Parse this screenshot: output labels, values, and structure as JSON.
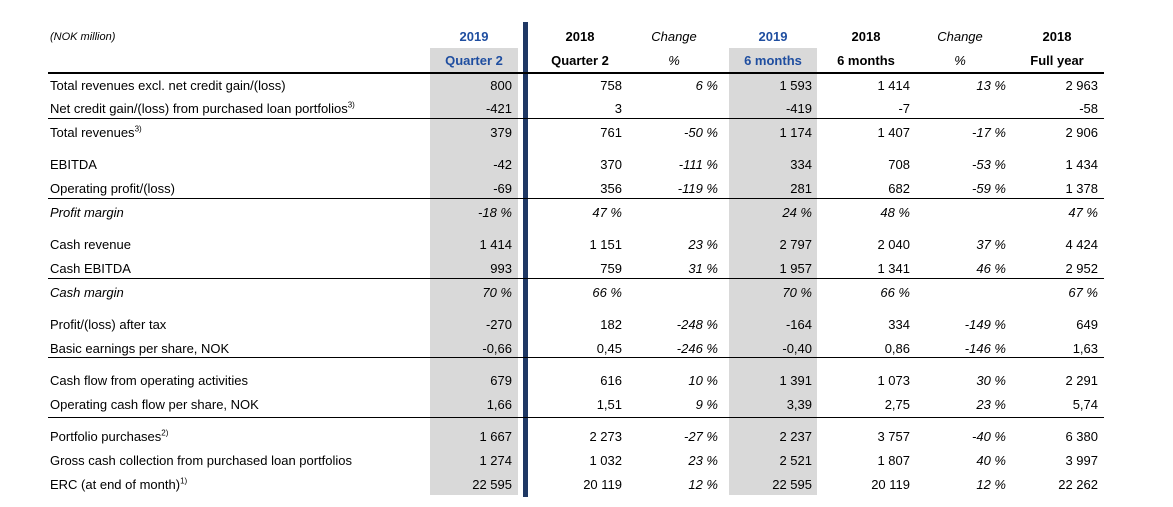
{
  "header": {
    "unit": "(NOK million)",
    "cols": [
      {
        "top": "2019",
        "bottom": "Quarter 2",
        "style": "blue"
      },
      {
        "top": "2018",
        "bottom": "Quarter 2",
        "style": "bold"
      },
      {
        "top": "Change",
        "bottom": "%",
        "style": "ital"
      },
      {
        "top": "2019",
        "bottom": "6 months",
        "style": "blue"
      },
      {
        "top": "2018",
        "bottom": "6 months",
        "style": "bold"
      },
      {
        "top": "Change",
        "bottom": "%",
        "style": "ital"
      },
      {
        "top": "2018",
        "bottom": "Full year",
        "style": "bold"
      }
    ]
  },
  "rows": [
    {
      "label": "Total revenues excl. net credit gain/(loss)",
      "sup": "",
      "italic": false,
      "values": [
        "800",
        "758",
        "6 %",
        "1 593",
        "1 414",
        "13 %",
        "2 963"
      ]
    },
    {
      "label": "Net credit gain/(loss) from purchased loan portfolios",
      "sup": "3)",
      "italic": false,
      "values": [
        "-421",
        "3",
        "",
        "-419",
        "-7",
        "",
        "-58"
      ]
    },
    {
      "label": "Total revenues",
      "sup": "3)",
      "italic": false,
      "values": [
        "379",
        "761",
        "-50 %",
        "1 174",
        "1 407",
        "-17 %",
        "2 906"
      ]
    },
    {
      "label": "EBITDA",
      "sup": "",
      "italic": false,
      "values": [
        "-42",
        "370",
        "-111 %",
        "334",
        "708",
        "-53 %",
        "1 434"
      ]
    },
    {
      "label": "Operating profit/(loss)",
      "sup": "",
      "italic": false,
      "values": [
        "-69",
        "356",
        "-119 %",
        "281",
        "682",
        "-59 %",
        "1 378"
      ]
    },
    {
      "label": "Profit margin",
      "sup": "",
      "italic": true,
      "values": [
        "-18 %",
        "47 %",
        "",
        "24 %",
        "48 %",
        "",
        "47 %"
      ]
    },
    {
      "label": "Cash revenue",
      "sup": "",
      "italic": false,
      "values": [
        "1 414",
        "1 151",
        "23 %",
        "2 797",
        "2 040",
        "37 %",
        "4 424"
      ]
    },
    {
      "label": "Cash EBITDA",
      "sup": "",
      "italic": false,
      "values": [
        "993",
        "759",
        "31 %",
        "1 957",
        "1 341",
        "46 %",
        "2 952"
      ]
    },
    {
      "label": "Cash margin",
      "sup": "",
      "italic": true,
      "values": [
        "70 %",
        "66 %",
        "",
        "70 %",
        "66 %",
        "",
        "67 %"
      ]
    },
    {
      "label": "Profit/(loss) after tax",
      "sup": "",
      "italic": false,
      "values": [
        "-270",
        "182",
        "-248 %",
        "-164",
        "334",
        "-149 %",
        "649"
      ]
    },
    {
      "label": "Basic earnings per share, NOK",
      "sup": "",
      "italic": false,
      "values": [
        "-0,66",
        "0,45",
        "-246 %",
        "-0,40",
        "0,86",
        "-146 %",
        "1,63"
      ]
    },
    {
      "label": "Cash flow from operating activities",
      "sup": "",
      "italic": false,
      "values": [
        "679",
        "616",
        "10 %",
        "1 391",
        "1 073",
        "30 %",
        "2 291"
      ]
    },
    {
      "label": "Operating cash flow per share, NOK",
      "sup": "",
      "italic": false,
      "values": [
        "1,66",
        "1,51",
        "9 %",
        "3,39",
        "2,75",
        "23 %",
        "5,74"
      ]
    },
    {
      "label": "Portfolio purchases",
      "sup": "2)",
      "italic": false,
      "values": [
        "1 667",
        "2 273",
        "-27 %",
        "2 237",
        "3 757",
        "-40 %",
        "6 380"
      ]
    },
    {
      "label": "Gross cash collection from purchased loan portfolios",
      "sup": "",
      "italic": false,
      "values": [
        "1 274",
        "1 032",
        "23 %",
        "2 521",
        "1 807",
        "40 %",
        "3 997"
      ]
    },
    {
      "label": "ERC (at end of month)",
      "sup": "1)",
      "italic": false,
      "values": [
        "22 595",
        "20 119",
        "12 %",
        "22 595",
        "20 119",
        "12 %",
        "22 262"
      ]
    }
  ]
}
